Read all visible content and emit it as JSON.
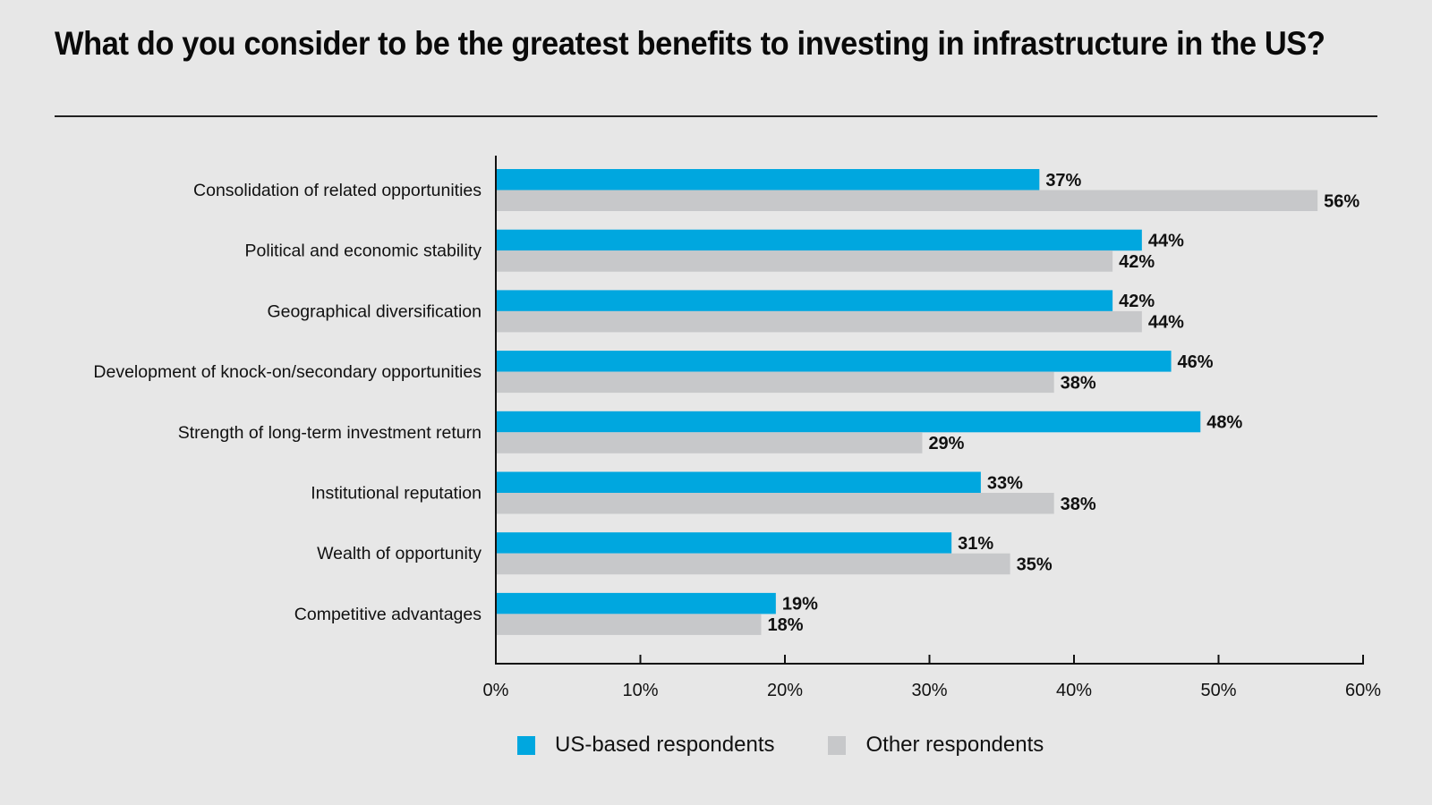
{
  "header": {
    "title": "What do you consider to be the greatest benefits to investing in infrastructure in the US?"
  },
  "colors": {
    "background": "#e7e7e7",
    "us_based": "#00a7df",
    "other": "#c7c8ca",
    "text": "#111111"
  },
  "legend": {
    "items": [
      {
        "label": "US-based respondents",
        "color": "#00a7df"
      },
      {
        "label": "Other respondents",
        "color": "#c7c8ca"
      }
    ]
  },
  "chart_data": {
    "type": "bar",
    "orientation": "horizontal",
    "title": "What do you consider to be the greatest benefits to investing in infrastructure in the US?",
    "xlabel": "",
    "ylabel": "",
    "xlim": [
      0,
      60
    ],
    "x_ticks": [
      "0%",
      "10%",
      "20%",
      "30%",
      "40%",
      "50%",
      "60%"
    ],
    "x_tick_values": [
      0,
      10,
      20,
      30,
      40,
      50,
      60
    ],
    "grid": false,
    "legend_position": "bottom",
    "value_suffix": "%",
    "categories": [
      "Consolidation of related opportunities",
      "Political and economic stability",
      "Geographical diversification",
      "Development of knock-on/secondary opportunities",
      "Strength of long-term investment return",
      "Institutional reputation",
      "Wealth of opportunity",
      "Competitive advantages"
    ],
    "series": [
      {
        "name": "US-based respondents",
        "color": "#00a7df",
        "values": [
          37,
          44,
          42,
          46,
          48,
          33,
          31,
          19
        ]
      },
      {
        "name": "Other respondents",
        "color": "#c7c8ca",
        "values": [
          56,
          42,
          44,
          38,
          29,
          38,
          35,
          18
        ]
      }
    ]
  }
}
